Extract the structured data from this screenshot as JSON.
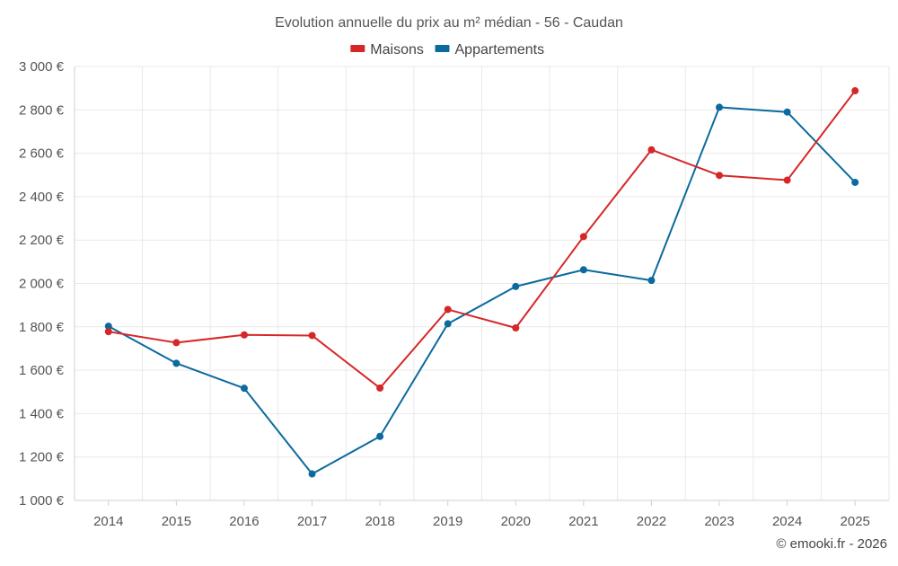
{
  "chart_data": {
    "type": "line",
    "title": "Evolution annuelle du prix au m² médian - 56 - Caudan",
    "categories": [
      "2014",
      "2015",
      "2016",
      "2017",
      "2018",
      "2019",
      "2020",
      "2021",
      "2022",
      "2023",
      "2024",
      "2025"
    ],
    "series": [
      {
        "name": "Maisons",
        "color": "#d62728",
        "values": [
          1778,
          1727,
          1763,
          1760,
          1518,
          1880,
          1795,
          2216,
          2616,
          2498,
          2476,
          2888
        ]
      },
      {
        "name": "Appartements",
        "color": "#0b6a9e",
        "values": [
          1803,
          1632,
          1517,
          1122,
          1295,
          1814,
          1986,
          2063,
          2014,
          2812,
          2790,
          2466
        ]
      }
    ],
    "ylim": [
      1000,
      3000
    ],
    "yticks": [
      1000,
      1200,
      1400,
      1600,
      1800,
      2000,
      2200,
      2400,
      2600,
      2800,
      3000
    ],
    "ytick_labels": [
      "1 000 €",
      "1 200 €",
      "1 400 €",
      "1 600 €",
      "1 800 €",
      "2 000 €",
      "2 200 €",
      "2 400 €",
      "2 600 €",
      "2 800 €",
      "3 000 €"
    ],
    "xlabel": "",
    "ylabel": "",
    "legend_position": "top-center",
    "grid": true
  },
  "credit": "© emooki.fr - 2026"
}
